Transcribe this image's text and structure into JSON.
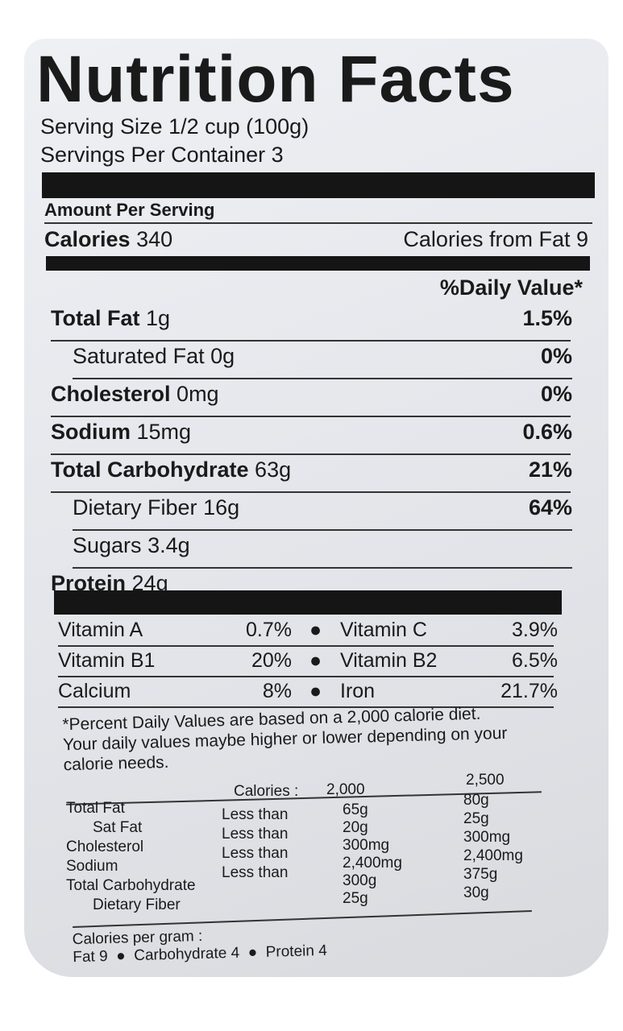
{
  "title": "Nutrition Facts",
  "serving_size": "Serving Size 1/2 cup (100g)",
  "servings_per_container": "Servings Per Container 3",
  "amount_per_serving": "Amount Per Serving",
  "calories": {
    "label": "Calories",
    "value": "340",
    "from_fat": "Calories from Fat 9"
  },
  "daily_value_header": "%Daily Value*",
  "nutrients": [
    {
      "label": "Total Fat",
      "amount": "1g",
      "dv": "1.5%",
      "bold": true,
      "indent": false
    },
    {
      "label": "Saturated Fat",
      "amount": "0g",
      "dv": "0%",
      "bold": false,
      "indent": true
    },
    {
      "label": "Cholesterol",
      "amount": "0mg",
      "dv": "0%",
      "bold": true,
      "indent": false
    },
    {
      "label": "Sodium",
      "amount": "15mg",
      "dv": "0.6%",
      "bold": true,
      "indent": false
    },
    {
      "label": "Total Carbohydrate",
      "amount": "63g",
      "dv": "21%",
      "bold": true,
      "indent": false
    },
    {
      "label": "Dietary Fiber",
      "amount": "16g",
      "dv": "64%",
      "bold": false,
      "indent": true
    },
    {
      "label": "Sugars",
      "amount": "3.4g",
      "dv": "",
      "bold": false,
      "indent": true
    },
    {
      "label": "Protein",
      "amount": "24g",
      "dv": "",
      "bold": true,
      "indent": false
    }
  ],
  "vitamins": [
    {
      "left_label": "Vitamin A",
      "left_value": "0.7%",
      "right_label": "Vitamin C",
      "right_value": "3.9%"
    },
    {
      "left_label": "Vitamin B1",
      "left_value": "20%",
      "right_label": "Vitamin B2",
      "right_value": "6.5%"
    },
    {
      "left_label": "Calcium",
      "left_value": "8%",
      "right_label": "Iron",
      "right_value": "21.7%"
    }
  ],
  "footnote": "*Percent Daily Values are based on a 2,000 calorie diet. Your daily values maybe higher or lower depending on your calorie needs.",
  "dv_table": {
    "header": {
      "label": "Calories :",
      "col1": "2,000",
      "col2": "2,500"
    },
    "rows": [
      {
        "label": "Total Fat",
        "qualifier": "Less than",
        "col1": "65g",
        "col2": "80g"
      },
      {
        "label": "Sat Fat",
        "qualifier": "Less than",
        "col1": "20g",
        "col2": "25g"
      },
      {
        "label": "Cholesterol",
        "qualifier": "Less than",
        "col1": "300mg",
        "col2": "300mg"
      },
      {
        "label": "Sodium",
        "qualifier": "Less than",
        "col1": "2,400mg",
        "col2": "2,400mg"
      },
      {
        "label": "Total Carbohydrate",
        "qualifier": "",
        "col1": "300g",
        "col2": "375g"
      },
      {
        "label": "Dietary Fiber",
        "qualifier": "",
        "col1": "25g",
        "col2": "30g"
      }
    ]
  },
  "calories_per_gram": {
    "label": "Calories per gram :",
    "fat": "Fat 9",
    "carbohydrate": "Carbohydrate 4",
    "protein": "Protein 4"
  }
}
